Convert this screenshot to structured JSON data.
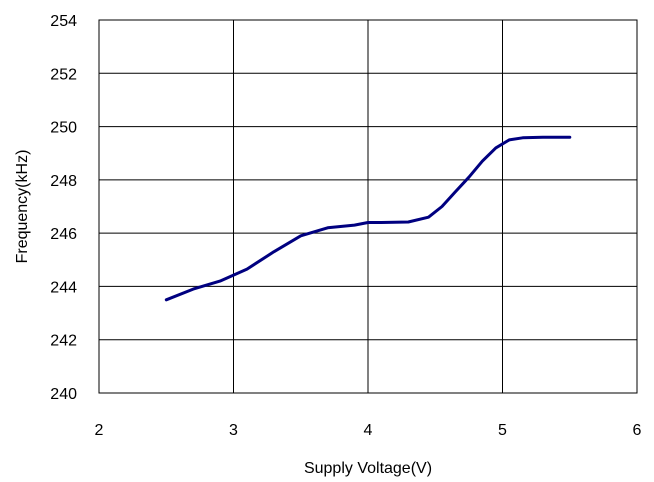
{
  "chart_data": {
    "type": "line",
    "title": "",
    "xlabel": "Supply Voltage(V)",
    "ylabel": "Frequency(kHz)",
    "xlim": [
      2,
      6
    ],
    "ylim": [
      240,
      254
    ],
    "x_ticks": [
      "2",
      "3",
      "4",
      "5",
      "6"
    ],
    "y_ticks": [
      "240",
      "242",
      "244",
      "246",
      "248",
      "250",
      "252",
      "254"
    ],
    "grid": true,
    "legend": "none",
    "series": [
      {
        "color": "#000080",
        "x": [
          2.5,
          2.7,
          2.9,
          3.1,
          3.3,
          3.5,
          3.7,
          3.9,
          4.0,
          4.1,
          4.3,
          4.45,
          4.55,
          4.65,
          4.75,
          4.85,
          4.95,
          5.05,
          5.15,
          5.3,
          5.5
        ],
        "y": [
          243.5,
          243.9,
          244.2,
          244.65,
          245.3,
          245.9,
          246.2,
          246.3,
          246.4,
          246.4,
          246.42,
          246.6,
          247.0,
          247.55,
          248.1,
          248.7,
          249.2,
          249.5,
          249.58,
          249.6,
          249.6
        ]
      }
    ]
  }
}
